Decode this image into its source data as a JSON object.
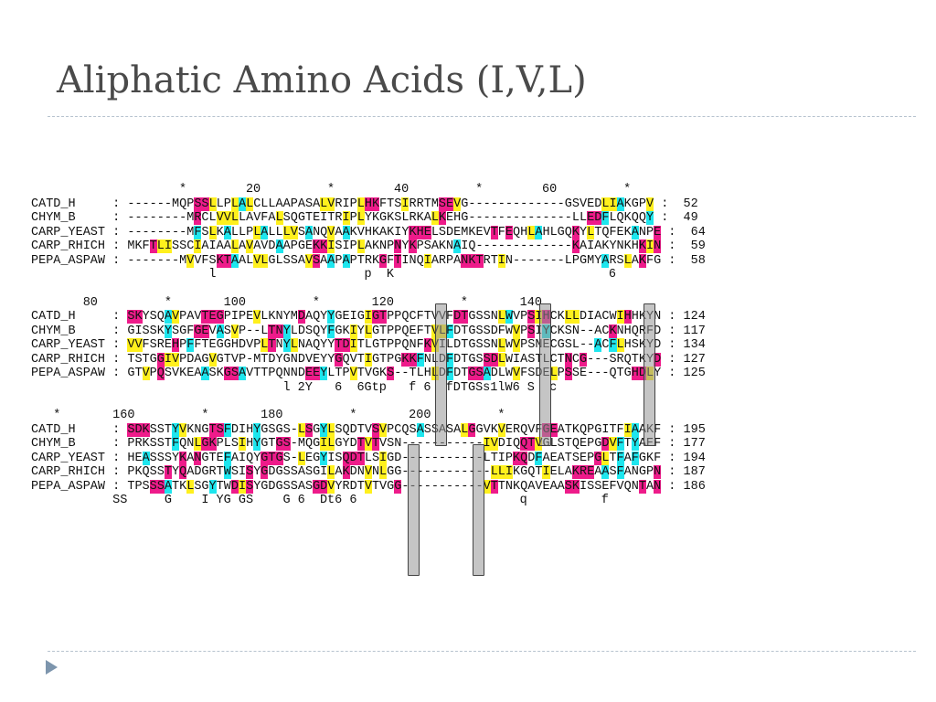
{
  "slide": {
    "title": "Aliphatic Amino Acids (I,V,L)"
  },
  "alignment": {
    "blocks": [
      {
        "ruler": "                    *        20         *        40         *        60         *",
        "rows": [
          {
            "line": "CATD_H     : ------MQPSSLLPLALCLLAAPASALVRIPLHKFTSIRRTMSEVG-------------GSVEDLIAKGPV :  52",
            "colors": "................................................................................................"
          },
          {
            "line": "CHYM_B     : --------MRCLVVLLAVFALSQGTEITRIPLYKGKSLRKALKEHG--------------LLEDFLQKQQY :  49",
            "colors": ""
          },
          {
            "line": "CARP_YEAST : --------MFSLKALLPLALLLVSANQVAAKVHKAKIYKHELSDEMKEVTFEQHLAHLGQKYLTQFEKANPE :  64",
            "colors": ""
          },
          {
            "line": "CARP_RHICH : MKFTLISSCIAIAALAVAVDAAPGEKKISIPLAKNPNYKPSAKNAIQ-------------KAIAKYNKHKIN :  59",
            "colors": ""
          },
          {
            "line": "PEPA_ASPAW : -------MVVFSKTAALVLGLSSAVSAAPAPTRKGFTINQIARPANKTRTIN-------LPGMYARSLAKFG :  58",
            "colors": ""
          }
        ],
        "consensus": "                        l                    p  K                             6"
      },
      {
        "ruler": "       80         *       100         *       120         *       140",
        "rows": [
          {
            "line": "CATD_H     : SKYSQAVPAVTEGPIPEVLKNYMDAQYYGEIGIGTPPQCFTVVFDTGSSNLWVPSIHCKLLDIACWIHHKYN : 124",
            "colors": ""
          },
          {
            "line": "CHYM_B     : GISSKYSGFGEVASVP--LTNYLDSQYFGKIYLGTPPQEFTVLFDTGSSDFWVPSIYCKSN--ACKNHQRFD : 117",
            "colors": ""
          },
          {
            "line": "CARP_YEAST : VVFSREHPFFTEGGHDVPLTNYLNAQYYTDITLGTPPQNFKVILDTGSSNLWVPSNECGSL--ACFLHSKYD : 134",
            "colors": ""
          },
          {
            "line": "CARP_RHICH : TSTGGIVPDAGVGTVP-MTDYGNDVEYYGQVTIGTPGKKFNLDFDTGSSDLWIASTLCTNCG---SRQTKYD : 127",
            "colors": ""
          },
          {
            "line": "PEPA_ASPAW : GTVPQSVKEAASKGSAVTTPQNNDEEYLTPVTVGKS--TLHLDFDTGSADLWVFSDELPSSE---QTGHDLY : 125",
            "colors": ""
          }
        ],
        "consensus": "                                  l 2Y   6  6Gtp   f 6  fDTGSs1lW6 S  c"
      },
      {
        "ruler": "   *       160         *       180         *       200         *",
        "rows": [
          {
            "line": "CATD_H     : SDKSSTYVKNGTSFDIHYGSGS-LSGYLSQDTVSVPCQSASSASALGGVKVERQVFGEATKQPGITFIAAKF : 195",
            "colors": ""
          },
          {
            "line": "CHYM_B     : PRKSSTFQNLGKPLSIHYGTGS-MQGILGYDTVTVSN-----------IVDIQQTVGLSTQEPGDVFTYAEF : 177",
            "colors": ""
          },
          {
            "line": "CARP_YEAST : HEASSSYKANGTEFAIQYGTGS-LEGYISQDTLSIGD-----------LTIPKQDFAEATSEPGLTFAFGKF : 194",
            "colors": ""
          },
          {
            "line": "CARP_RHICH : PKQSSTYQADGRTWSISYGDGSSASGILAKDNVNLGG------------LLIKGQTIELAKREAASFANGPN : 187",
            "colors": ""
          },
          {
            "line": "PEPA_ASPAW : TPSSSATKLSGYTWDISYGDGSSASGDVYRDTVTVGG-----------VTTNKQAVEAASKISSEFVQNTAN : 186",
            "colors": ""
          }
        ],
        "consensus": "           SS     G    I YG GS    G 6  Dt6 6                      q          f"
      }
    ]
  }
}
